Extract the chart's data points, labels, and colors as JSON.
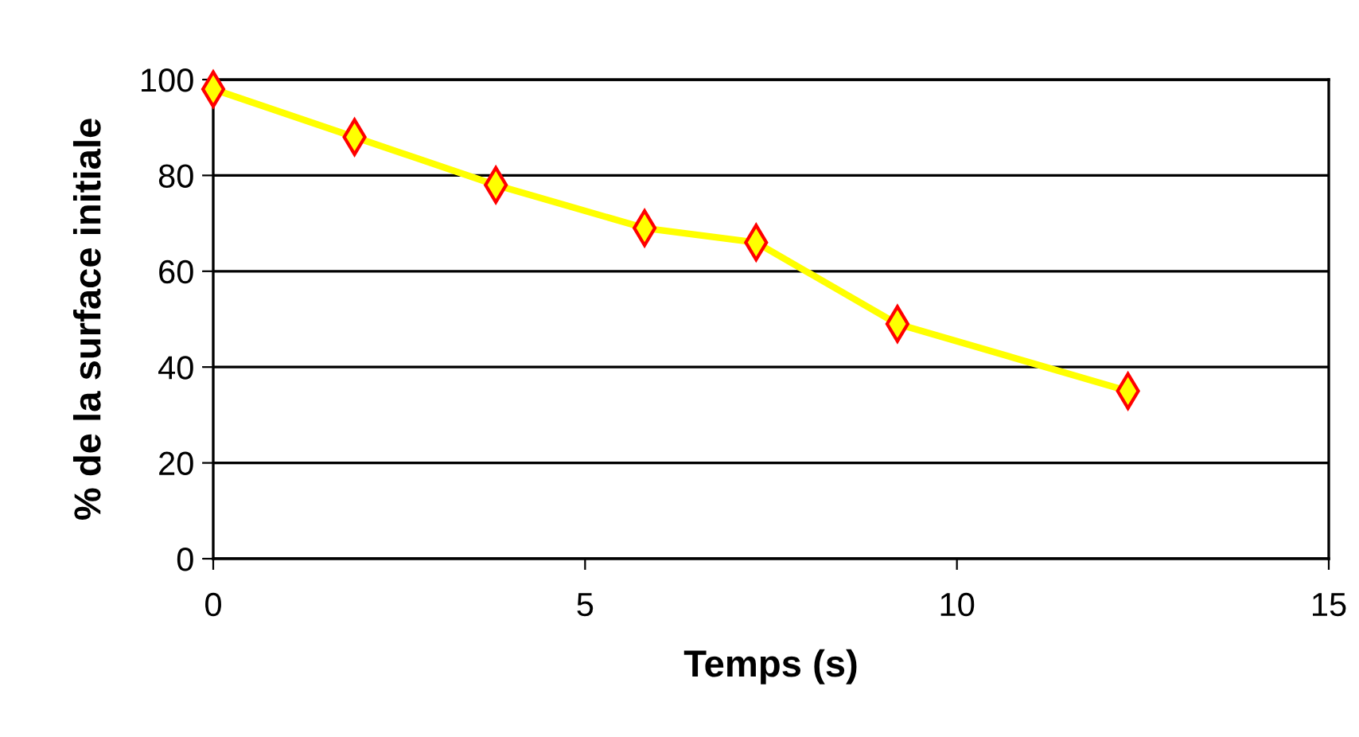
{
  "chart_data": {
    "type": "line",
    "xlabel": "Temps (s)",
    "ylabel": "% de la surface initiale",
    "x": [
      0,
      1.9,
      3.8,
      5.8,
      7.3,
      9.2,
      12.3
    ],
    "series": [
      {
        "color": "#ffff00",
        "values": [
          98,
          88,
          78,
          69,
          66,
          49,
          35
        ]
      }
    ],
    "xlim": [
      0,
      15
    ],
    "xticks": [
      0,
      5,
      10,
      15
    ],
    "ylim": [
      0,
      100
    ],
    "yticks": [
      0,
      20,
      40,
      60,
      80,
      100
    ],
    "grid": "y",
    "marker": "diamond",
    "line_style": "solid"
  }
}
